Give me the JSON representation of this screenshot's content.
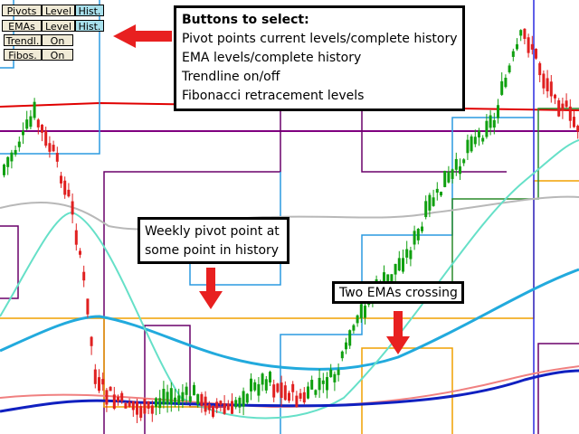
{
  "buttons": [
    {
      "label": "Pivots",
      "options": [
        "Level",
        "Hist."
      ]
    },
    {
      "label": "EMAs",
      "options": [
        "Level",
        "Hist."
      ]
    },
    {
      "label": "Trendl.",
      "options": [
        "On"
      ]
    },
    {
      "label": "Fibos.",
      "options": [
        "On"
      ]
    }
  ],
  "legend_box": {
    "title": "Buttons to select:",
    "lines": [
      "Pivot points current levels/complete history",
      "EMA levels/complete history",
      "Trendline on/off",
      "Fibonacci retracement levels"
    ]
  },
  "callouts": [
    {
      "lines": [
        "Weekly pivot point at",
        "some point in history"
      ]
    },
    {
      "lines": [
        "Two EMAs crossing"
      ]
    }
  ]
}
